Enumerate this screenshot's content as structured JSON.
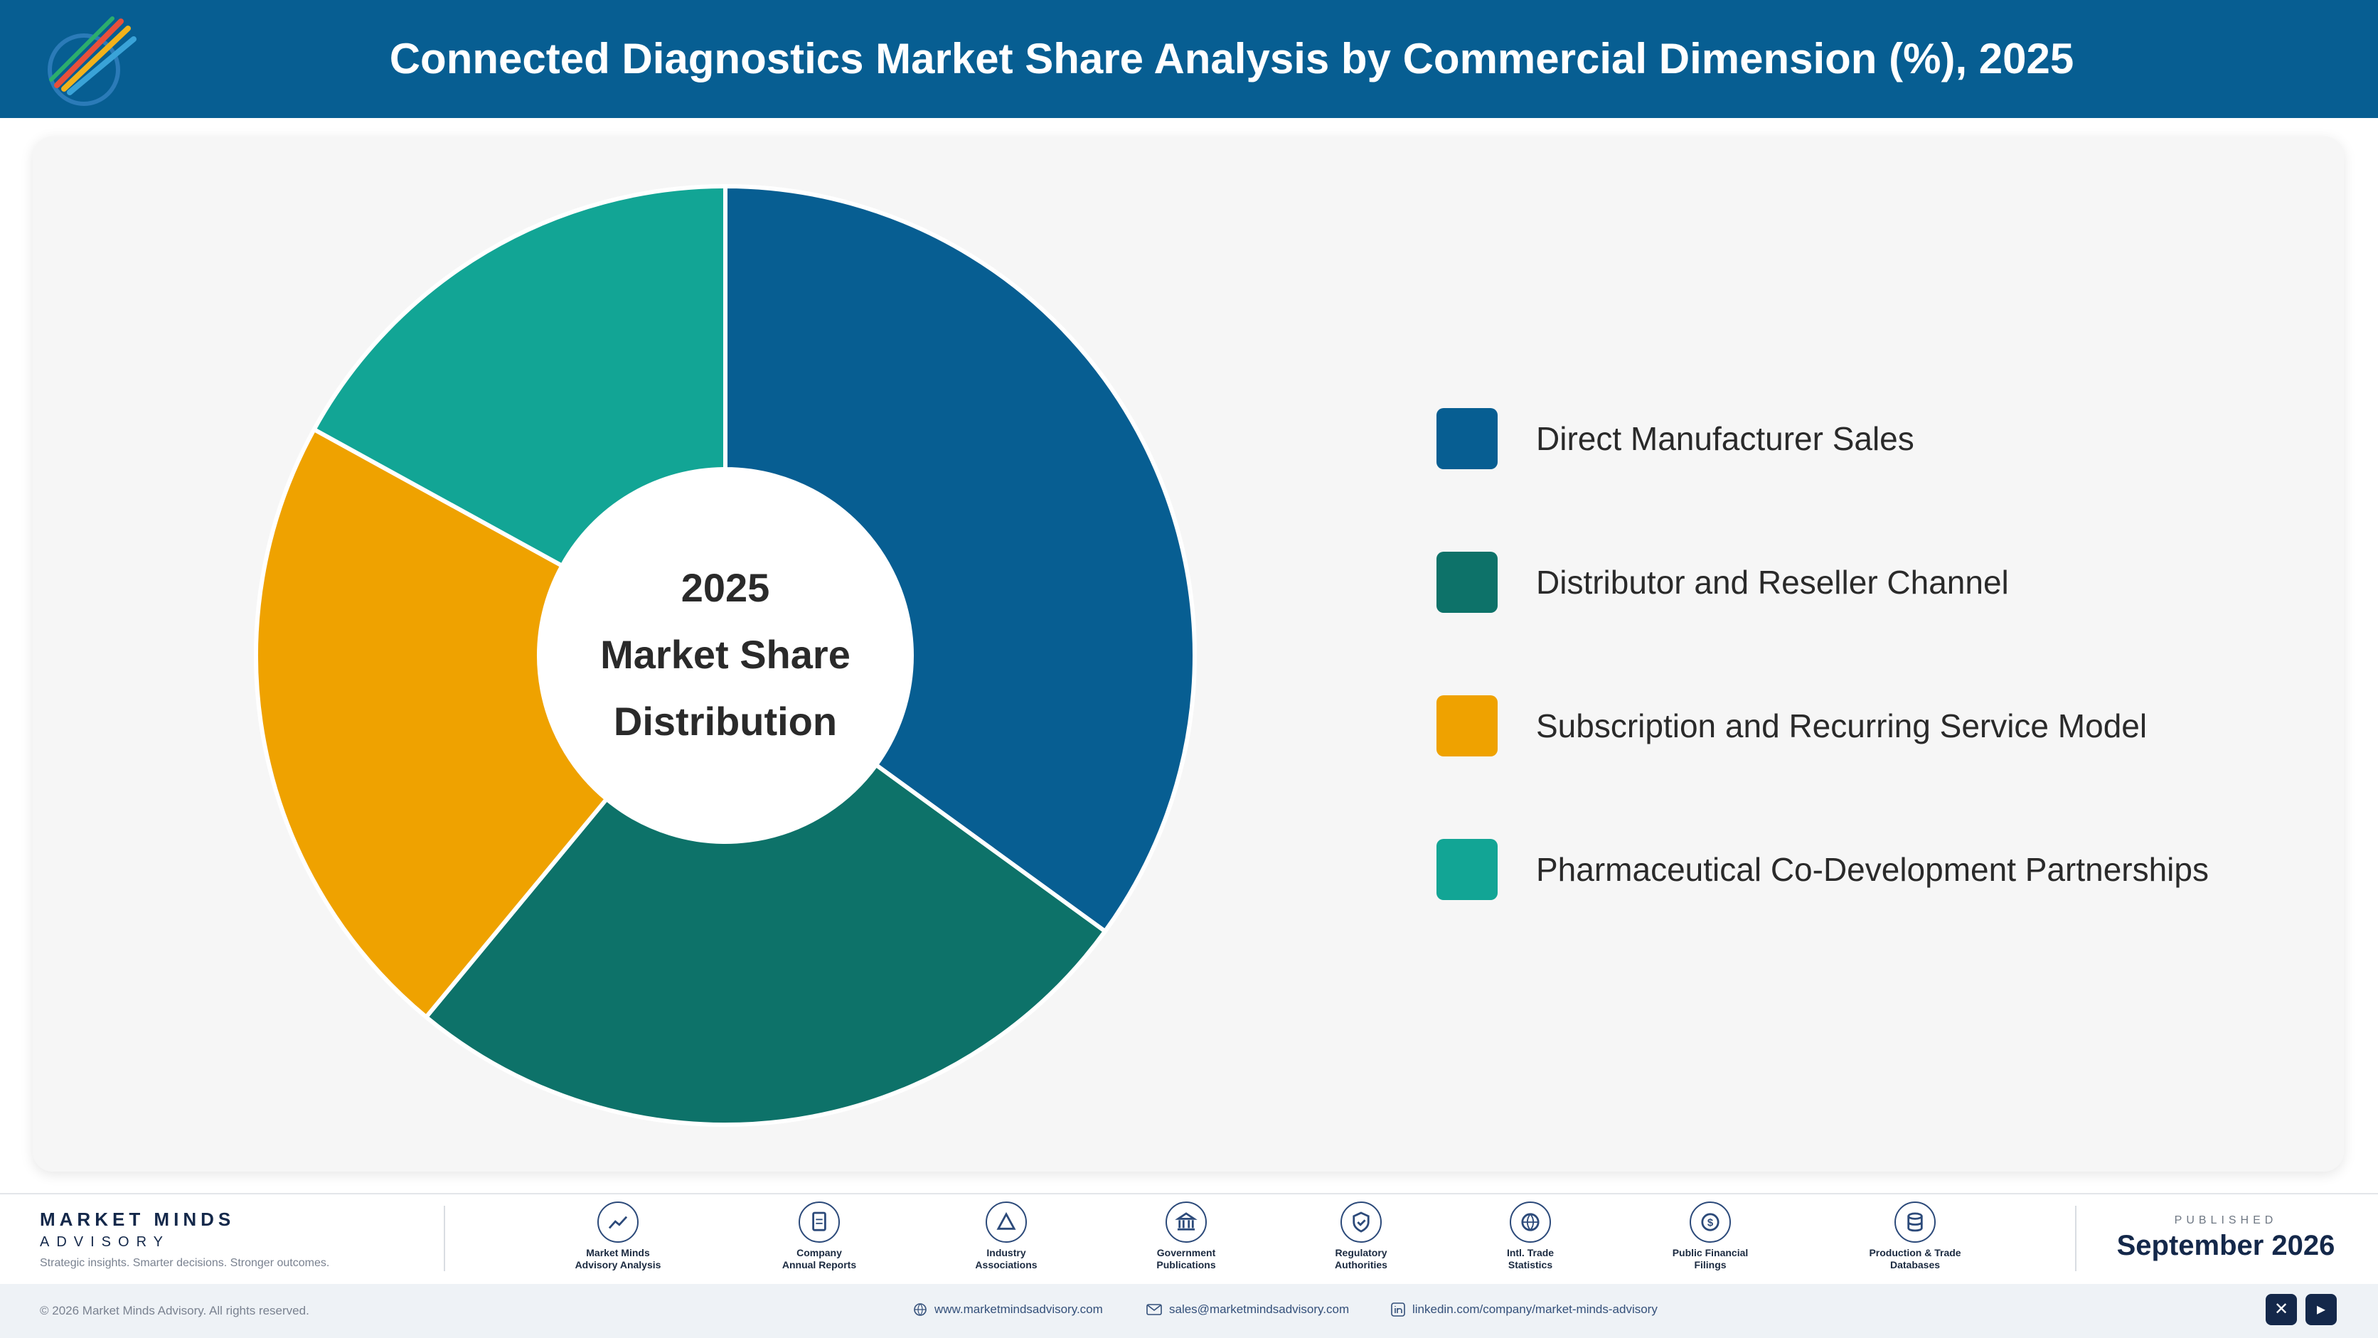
{
  "header": {
    "title": "Connected Diagnostics Market Share Analysis by Commercial Dimension (%), 2025"
  },
  "logo": {
    "icon": "market-minds-logo",
    "caption": "Market Minds Advisory"
  },
  "chart_data": {
    "type": "pie",
    "variant": "donut",
    "title": "Connected Diagnostics Market Share Analysis by Commercial Dimension (%), 2025",
    "center_label": [
      "2025",
      "Market Share",
      "Distribution"
    ],
    "legend_position": "right",
    "series": [
      {
        "name": "Direct Manufacturer Sales",
        "value": 35,
        "color": "#075e92"
      },
      {
        "name": "Distributor and Reseller Channel",
        "value": 26,
        "color": "#0d7269"
      },
      {
        "name": "Subscription and Recurring Service Model",
        "value": 22,
        "color": "#efa200"
      },
      {
        "name": "Pharmaceutical Co-Development Partnerships",
        "value": 17,
        "color": "#12a595"
      }
    ]
  },
  "footer": {
    "brand_name": "MARKET MINDS",
    "brand_sub": "ADVISORY",
    "brand_tagline": "Strategic insights. Smarter decisions. Stronger outcomes.",
    "sources": [
      {
        "icon": "trend-chart-icon",
        "line1": "Market Minds",
        "line2": "Advisory Analysis"
      },
      {
        "icon": "document-icon",
        "line1": "Company",
        "line2": "Annual Reports"
      },
      {
        "icon": "network-icon",
        "line1": "Industry",
        "line2": "Associations"
      },
      {
        "icon": "government-building-icon",
        "line1": "Government",
        "line2": "Publications"
      },
      {
        "icon": "shield-check-icon",
        "line1": "Regulatory",
        "line2": "Authorities"
      },
      {
        "icon": "globe-icon",
        "line1": "Intl. Trade",
        "line2": "Statistics"
      },
      {
        "icon": "dollar-coin-icon",
        "line1": "Public Financial",
        "line2": "Filings"
      },
      {
        "icon": "database-icon",
        "line1": "Production & Trade",
        "line2": "Databases"
      }
    ],
    "published_label": "PUBLISHED",
    "published_date": "September 2026",
    "copyright": "© 2026 Market Minds Advisory. All rights reserved.",
    "website": "www.marketmindsadvisory.com",
    "email": "sales@marketmindsadvisory.com",
    "linkedin": "linkedin.com/company/market-minds-advisory",
    "social_icons": [
      "x-icon",
      "youtube-icon"
    ]
  }
}
